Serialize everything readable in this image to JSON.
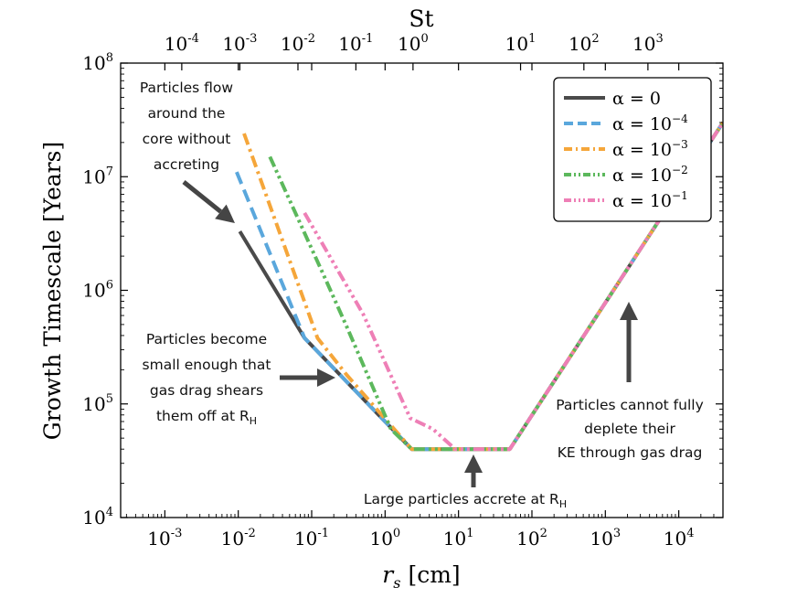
{
  "chart_data": {
    "type": "line",
    "x_scale": "log",
    "y_scale": "log",
    "xlabel": "r_s [cm]",
    "xlabel_main": "r",
    "xlabel_sub": "s",
    "xlabel_unit": "[cm]",
    "ylabel": "Growth Timescale [Years]",
    "top_xlabel": "St",
    "xlim": [
      0.00025,
      40000
    ],
    "ylim": [
      10000,
      100000000
    ],
    "bottom_ticks": [
      {
        "value": 0.001,
        "base": "10",
        "exp": "-3"
      },
      {
        "value": 0.01,
        "base": "10",
        "exp": "-2"
      },
      {
        "value": 0.1,
        "base": "10",
        "exp": "-1"
      },
      {
        "value": 1,
        "base": "10",
        "exp": "0"
      },
      {
        "value": 10,
        "base": "10",
        "exp": "1"
      },
      {
        "value": 100,
        "base": "10",
        "exp": "2"
      },
      {
        "value": 1000,
        "base": "10",
        "exp": "3"
      },
      {
        "value": 10000,
        "base": "10",
        "exp": "4"
      }
    ],
    "left_ticks": [
      {
        "value": 10000,
        "base": "10",
        "exp": "4"
      },
      {
        "value": 100000,
        "base": "10",
        "exp": "5"
      },
      {
        "value": 1000000,
        "base": "10",
        "exp": "6"
      },
      {
        "value": 10000000,
        "base": "10",
        "exp": "7"
      },
      {
        "value": 100000000,
        "base": "10",
        "exp": "8"
      }
    ],
    "top_ticks": [
      {
        "at_rs": 0.0017,
        "base": "10",
        "exp": "-4"
      },
      {
        "at_rs": 0.0105,
        "base": "10",
        "exp": "-3"
      },
      {
        "at_rs": 0.065,
        "base": "10",
        "exp": "-2"
      },
      {
        "at_rs": 0.4,
        "base": "10",
        "exp": "-1"
      },
      {
        "at_rs": 2.4,
        "base": "10",
        "exp": "0"
      },
      {
        "at_rs": 70,
        "base": "10",
        "exp": "1"
      },
      {
        "at_rs": 510,
        "base": "10",
        "exp": "2"
      },
      {
        "at_rs": 3800,
        "base": "10",
        "exp": "3"
      }
    ],
    "legend_position": "top-right",
    "series": [
      {
        "name": "α = 0",
        "base": "α = 0",
        "exp": "",
        "color": "#4a4a4a",
        "dash": "",
        "x": [
          0.0105,
          0.08,
          2.3,
          50,
          40000
        ],
        "y": [
          3300000,
          380000,
          40000,
          40000,
          30000000
        ]
      },
      {
        "name": "α = 10^-4",
        "base": "α = 10",
        "exp": "−4",
        "color": "#5aa7dc",
        "dash": "14,7",
        "x": [
          0.0095,
          0.08,
          2.3,
          50,
          40000
        ],
        "y": [
          11000000,
          380000,
          40000,
          40000,
          30000000
        ]
      },
      {
        "name": "α = 10^-3",
        "base": "α = 10",
        "exp": "−3",
        "color": "#f5a63a",
        "dash": "13,5,3,5",
        "x": [
          0.012,
          0.12,
          0.3,
          2.3,
          50,
          40000
        ],
        "y": [
          24000000,
          380000,
          180000,
          40000,
          40000,
          30000000
        ]
      },
      {
        "name": "α = 10^-2",
        "base": "α = 10",
        "exp": "−2",
        "color": "#5cb85c",
        "dash": "12,4,3,4,3,4",
        "x": [
          0.027,
          0.15,
          0.3,
          1.2,
          2.3,
          50,
          40000
        ],
        "y": [
          15000000,
          1300000,
          480000,
          60000,
          40000,
          40000,
          30000000
        ]
      },
      {
        "name": "α = 10^-1",
        "base": "α = 10",
        "exp": "−1",
        "color": "#ee7fb6",
        "dash": "12,4,3,4,3,4,3,4",
        "x": [
          0.08,
          0.5,
          2.2,
          4.5,
          9,
          50,
          40000
        ],
        "y": [
          4800000,
          620000,
          75000,
          60000,
          40000,
          40000,
          30000000
        ]
      }
    ],
    "annotations": [
      {
        "lines": [
          "Particles flow",
          "around the",
          "core without",
          "accreting"
        ]
      },
      {
        "lines": [
          "Particles become",
          "small enough that",
          "gas drag shears",
          "them off at R"
        ],
        "sub": "H"
      },
      {
        "lines": [
          "Large particles accrete at R"
        ],
        "sub": "H"
      },
      {
        "lines": [
          "Particles cannot fully",
          "deplete their",
          "KE through gas drag"
        ]
      }
    ]
  }
}
